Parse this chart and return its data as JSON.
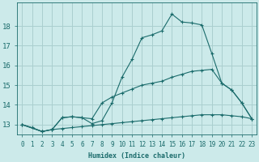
{
  "bg_color": "#cceaea",
  "grid_color": "#aacfcf",
  "line_color": "#1a6b6b",
  "xlabel": "Humidex (Indice chaleur)",
  "xlim": [
    -0.5,
    23.5
  ],
  "ylim": [
    12.5,
    19.2
  ],
  "yticks": [
    13,
    14,
    15,
    16,
    17,
    18
  ],
  "xticks": [
    0,
    1,
    2,
    3,
    4,
    5,
    6,
    7,
    8,
    9,
    10,
    11,
    12,
    13,
    14,
    15,
    16,
    17,
    18,
    19,
    20,
    21,
    22,
    23
  ],
  "series": [
    {
      "x": [
        0,
        1,
        2,
        3,
        4,
        5,
        6,
        7,
        8,
        9,
        10,
        11,
        12,
        13,
        14,
        15,
        16,
        17,
        18,
        19,
        20,
        21,
        22,
        23
      ],
      "y": [
        13.0,
        12.85,
        12.65,
        12.75,
        12.8,
        12.85,
        12.9,
        12.95,
        13.0,
        13.05,
        13.1,
        13.15,
        13.2,
        13.25,
        13.3,
        13.35,
        13.4,
        13.45,
        13.5,
        13.5,
        13.5,
        13.45,
        13.4,
        13.3
      ]
    },
    {
      "x": [
        0,
        2,
        3,
        4,
        5,
        6,
        7,
        8,
        9,
        10,
        11,
        12,
        13,
        14,
        15,
        16,
        17,
        18,
        19,
        20,
        21,
        22,
        23
      ],
      "y": [
        13.0,
        12.65,
        12.75,
        13.35,
        13.4,
        13.35,
        13.3,
        14.1,
        14.4,
        14.6,
        14.8,
        15.0,
        15.1,
        15.2,
        15.4,
        15.55,
        15.7,
        15.75,
        15.8,
        15.1,
        14.75,
        14.1,
        13.3
      ]
    },
    {
      "x": [
        0,
        2,
        3,
        4,
        5,
        6,
        7,
        8,
        9,
        10,
        11,
        12,
        13,
        14,
        15,
        16,
        17,
        18,
        19,
        20,
        21,
        22,
        23
      ],
      "y": [
        13.0,
        12.65,
        12.75,
        13.35,
        13.4,
        13.35,
        13.05,
        13.2,
        14.1,
        15.4,
        16.3,
        17.4,
        17.55,
        17.75,
        18.6,
        18.2,
        18.15,
        18.05,
        16.6,
        15.1,
        14.75,
        14.1,
        13.3
      ]
    }
  ]
}
